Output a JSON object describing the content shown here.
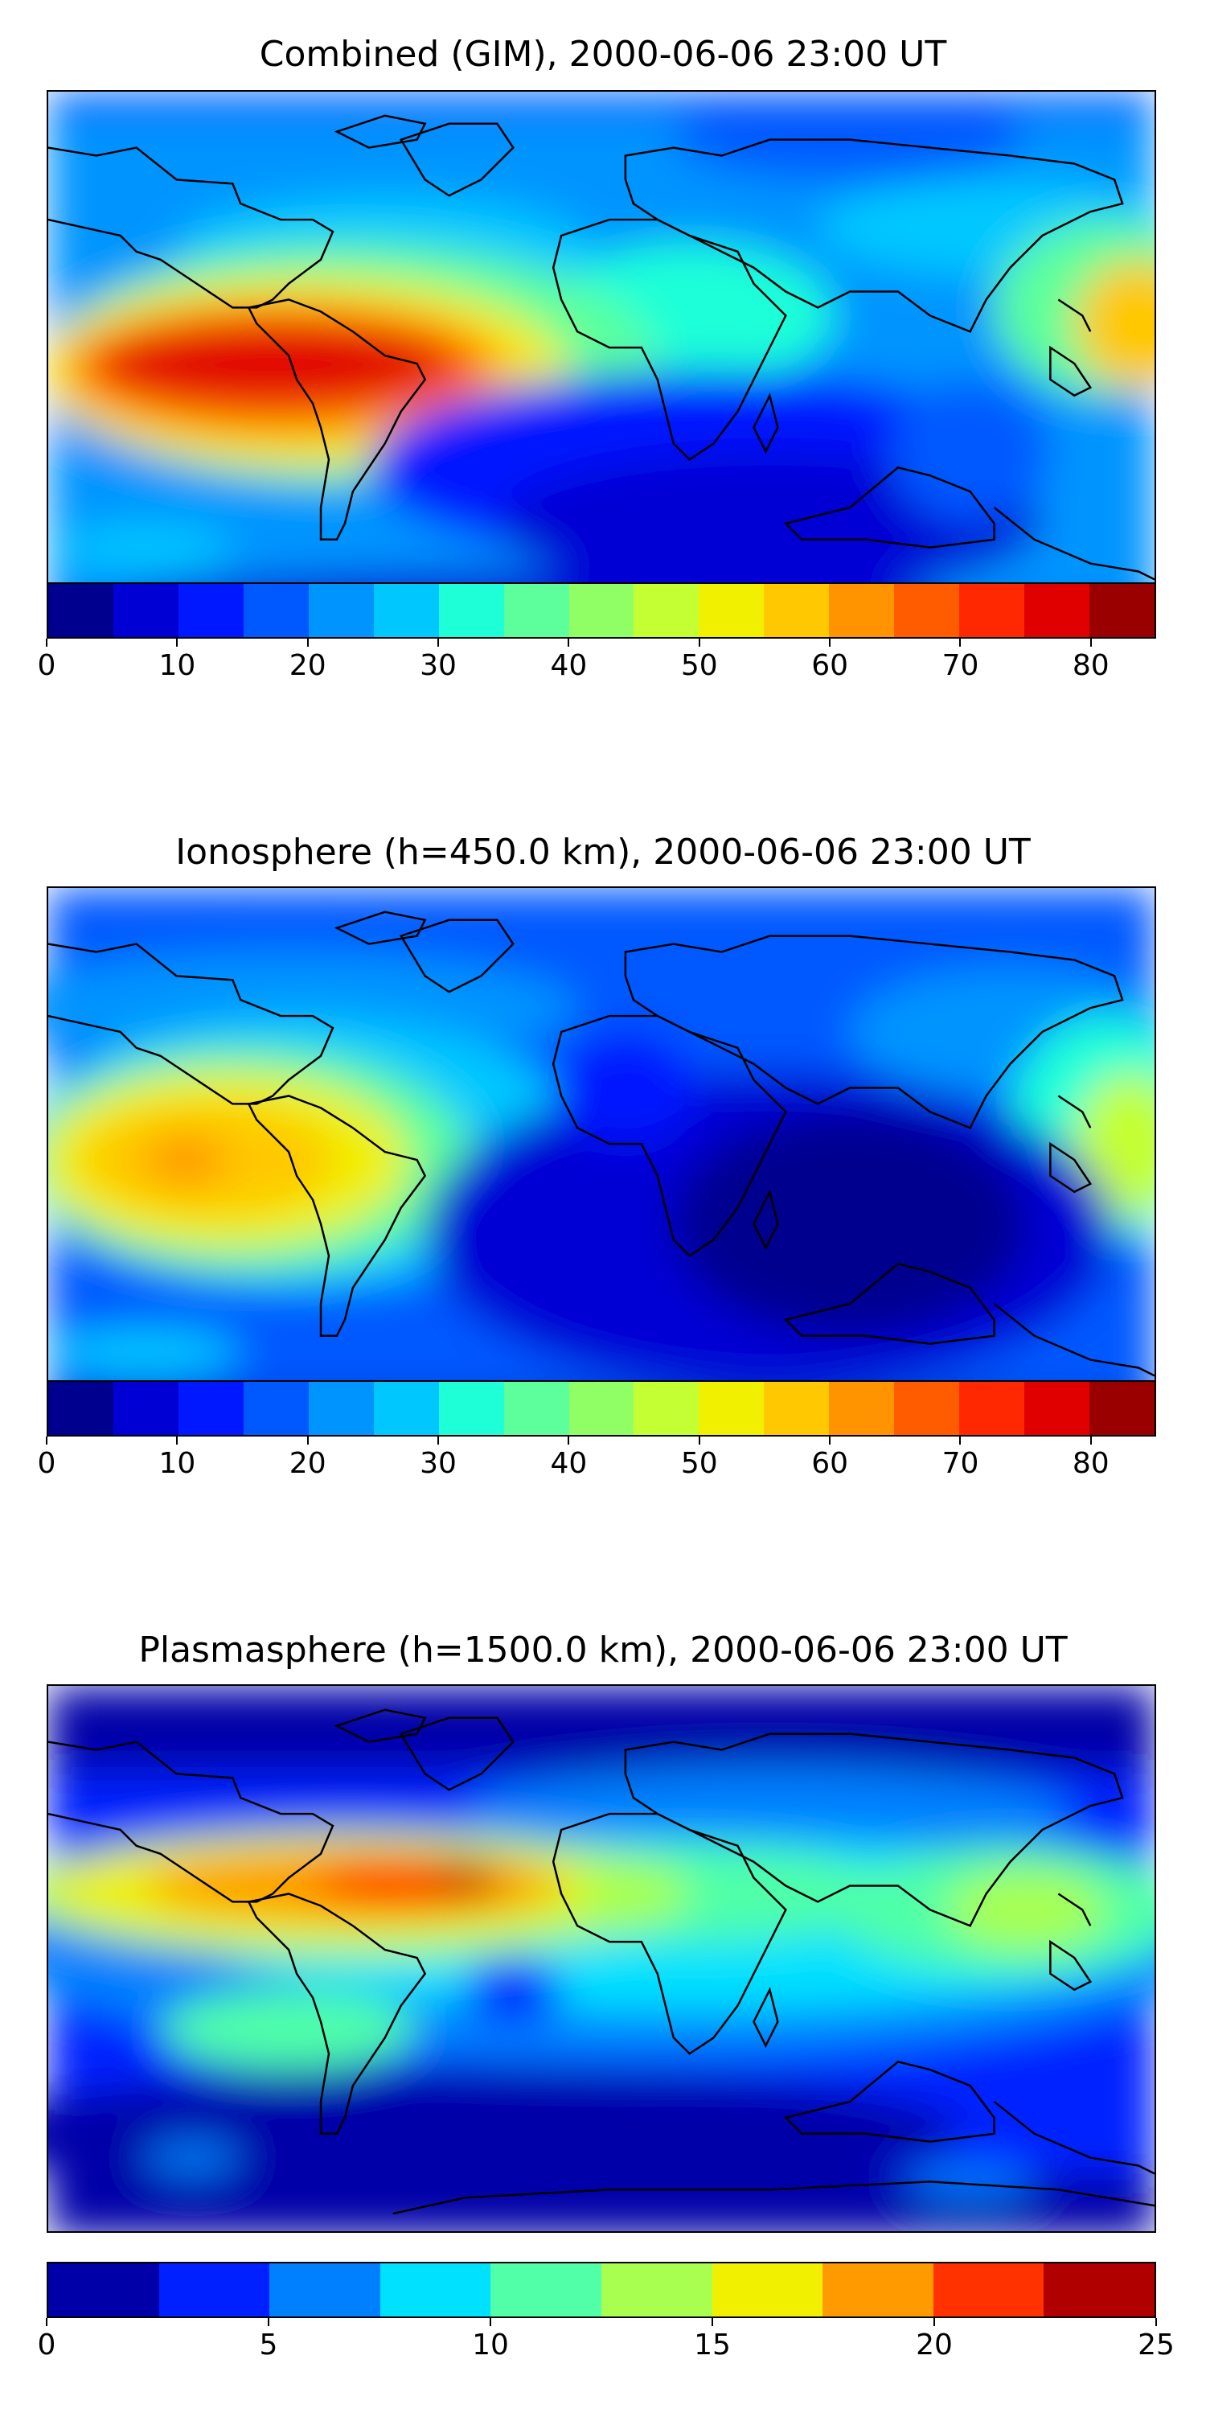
{
  "panels": [
    {
      "title": "Combined (GIM), 2000-06-06 23:00 UT",
      "colorbar": {
        "min": 0,
        "max": 85,
        "step": 5,
        "ticks": [
          "0",
          "10",
          "20",
          "30",
          "40",
          "50",
          "60",
          "70",
          "80"
        ],
        "tick_values": [
          0,
          10,
          20,
          30,
          40,
          50,
          60,
          70,
          80
        ],
        "colors": [
          "#00008f",
          "#0000d4",
          "#0018ff",
          "#0058ff",
          "#0094ff",
          "#00c8ff",
          "#1effd8",
          "#5cff9c",
          "#90ff66",
          "#c4ff33",
          "#f0f000",
          "#ffc800",
          "#ff9400",
          "#ff5c00",
          "#ff2800",
          "#e00000",
          "#9a0000"
        ]
      }
    },
    {
      "title": "Ionosphere  (h=450.0 km), 2000-06-06 23:00 UT",
      "colorbar": {
        "min": 0,
        "max": 85,
        "step": 5,
        "ticks": [
          "0",
          "10",
          "20",
          "30",
          "40",
          "50",
          "60",
          "70",
          "80"
        ],
        "tick_values": [
          0,
          10,
          20,
          30,
          40,
          50,
          60,
          70,
          80
        ],
        "colors": [
          "#00008f",
          "#0000d4",
          "#0018ff",
          "#0058ff",
          "#0094ff",
          "#00c8ff",
          "#1effd8",
          "#5cff9c",
          "#90ff66",
          "#c4ff33",
          "#f0f000",
          "#ffc800",
          "#ff9400",
          "#ff5c00",
          "#ff2800",
          "#e00000",
          "#9a0000"
        ]
      }
    },
    {
      "title": "Plasmasphere (h=1500.0 km), 2000-06-06 23:00 UT",
      "colorbar": {
        "min": 0,
        "max": 25,
        "step": 2.5,
        "ticks": [
          "0",
          "5",
          "10",
          "15",
          "20",
          "25"
        ],
        "tick_values": [
          0,
          5,
          10,
          15,
          20,
          25
        ],
        "colors": [
          "#0000a8",
          "#0020ff",
          "#0080ff",
          "#00e0ff",
          "#50ffa8",
          "#a8ff50",
          "#f0f000",
          "#ff9a00",
          "#ff3200",
          "#b00000"
        ]
      }
    }
  ]
}
